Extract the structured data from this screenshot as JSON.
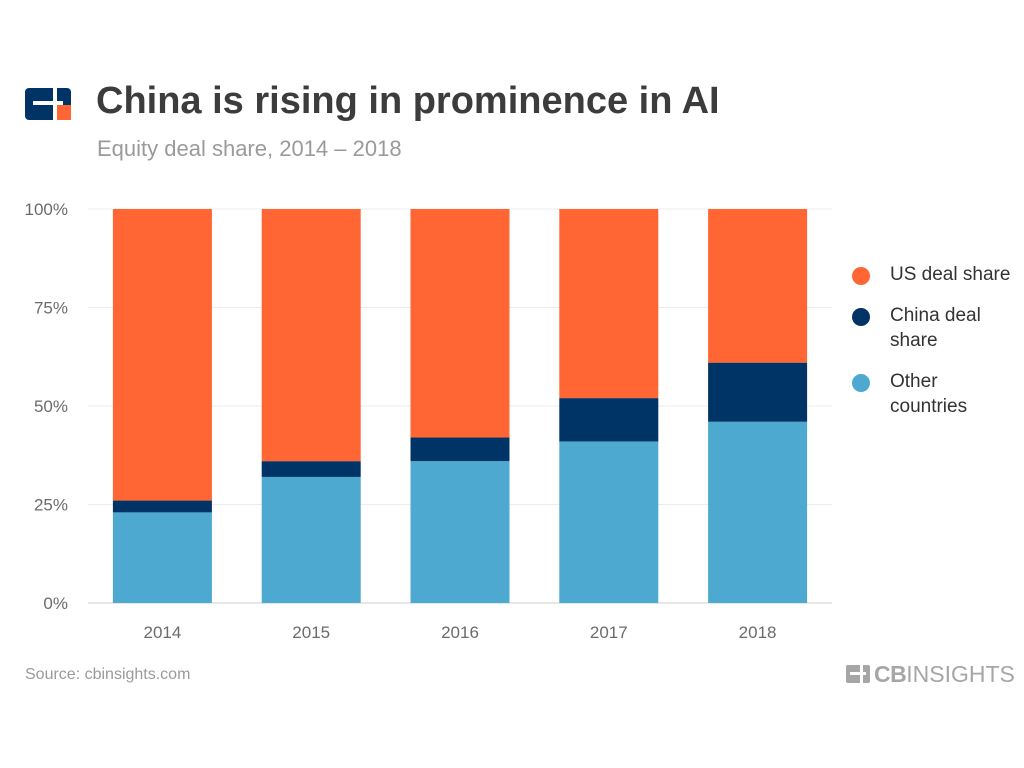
{
  "header": {
    "title": "China is rising in prominence in AI",
    "subtitle": "Equity deal share, 2014 – 2018"
  },
  "chart_data": {
    "type": "bar",
    "stacked": true,
    "categories": [
      "2014",
      "2015",
      "2016",
      "2017",
      "2018"
    ],
    "series": [
      {
        "name": "Other countries",
        "color": "#4ea9d1",
        "values": [
          23,
          32,
          36,
          41,
          46
        ]
      },
      {
        "name": "China deal share",
        "color": "#003366",
        "values": [
          3,
          4,
          6,
          11,
          15
        ]
      },
      {
        "name": "US deal share",
        "color": "#ff6633",
        "values": [
          74,
          64,
          58,
          48,
          39
        ]
      }
    ],
    "y_ticks": [
      "0%",
      "25%",
      "50%",
      "75%",
      "100%"
    ],
    "ylim": [
      0,
      100
    ],
    "grid": true,
    "legend_position": "right"
  },
  "legend": [
    {
      "label": "US deal share",
      "color": "#ff6633"
    },
    {
      "label": "China deal\nshare",
      "color": "#003366"
    },
    {
      "label": "Other\ncountries",
      "color": "#4ea9d1"
    }
  ],
  "footer": {
    "source": "Source: cbinsights.com",
    "brand_bold": "CB",
    "brand_rest": "INSIGHTS"
  },
  "colors": {
    "logo_dark": "#003366",
    "logo_accent": "#ff6633",
    "brand_gray": "#a6a6a6"
  }
}
